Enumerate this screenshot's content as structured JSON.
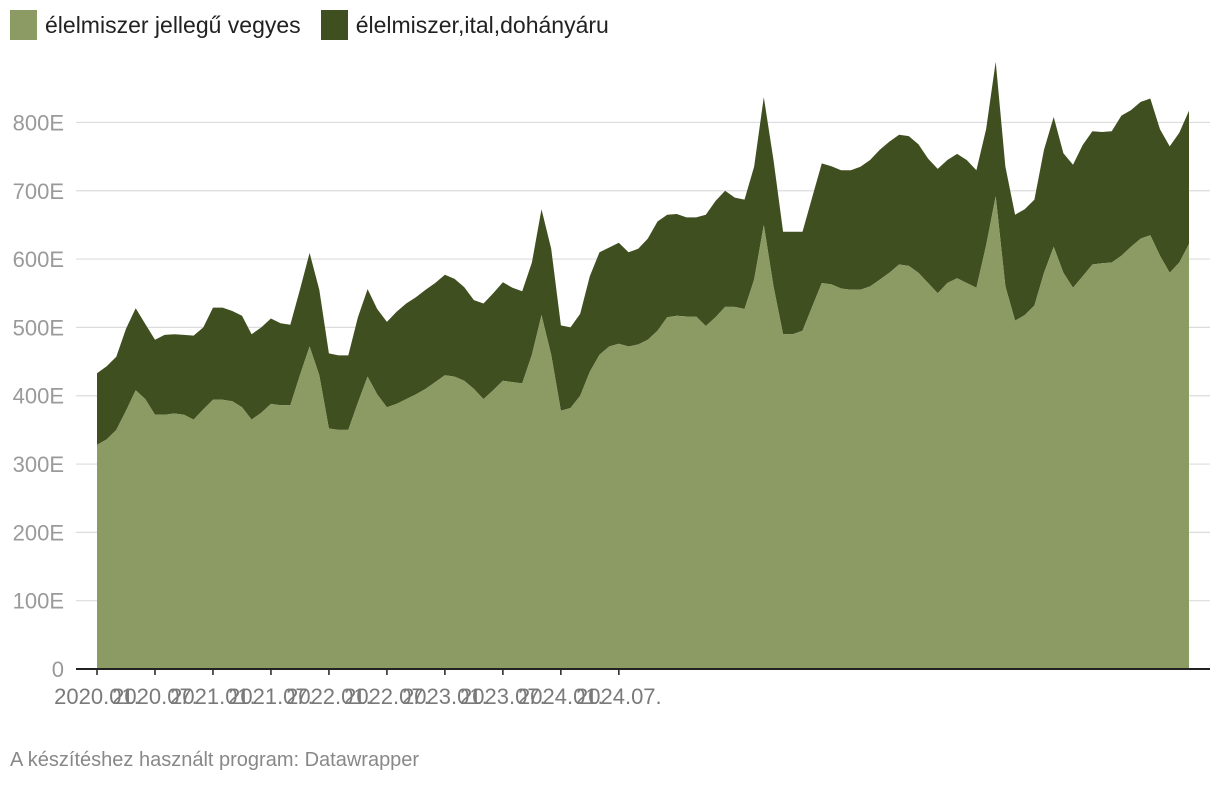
{
  "chart_data": {
    "type": "area",
    "stacked": true,
    "series": [
      {
        "name": "élelmiszer jellegű vegyes",
        "color": "#8c9a64",
        "values": [
          328,
          336,
          350,
          378,
          408,
          395,
          372,
          372,
          374,
          372,
          365,
          380,
          394,
          394,
          392,
          383,
          365,
          375,
          388,
          386,
          386,
          430,
          472,
          430,
          352,
          350,
          350,
          390,
          428,
          402,
          383,
          388,
          395,
          402,
          410,
          420,
          430,
          428,
          422,
          410,
          395,
          408,
          422,
          420,
          418,
          460,
          518,
          460,
          378,
          382,
          400,
          435,
          460,
          472,
          476,
          472,
          475,
          482,
          495,
          515,
          517,
          516,
          516,
          502,
          515,
          530,
          530,
          527,
          570,
          650,
          560,
          490,
          490,
          495,
          530,
          565,
          563,
          557,
          555,
          555,
          560,
          570,
          580,
          592,
          590,
          580,
          565,
          550,
          565,
          572,
          565,
          558,
          620,
          692,
          560,
          510,
          518,
          532,
          580,
          618,
          580,
          558,
          575,
          592,
          594,
          595,
          605,
          618,
          630,
          635,
          605,
          580,
          595,
          622
        ]
      },
      {
        "name": "élelmiszer,ital,dohányáru",
        "color": "#404f20",
        "values": [
          105,
          107,
          107,
          120,
          120,
          110,
          110,
          117,
          116,
          117,
          123,
          120,
          135,
          135,
          132,
          134,
          125,
          125,
          125,
          120,
          118,
          125,
          137,
          125,
          110,
          109,
          109,
          125,
          128,
          125,
          125,
          135,
          140,
          142,
          145,
          145,
          147,
          143,
          137,
          130,
          140,
          142,
          144,
          138,
          135,
          135,
          155,
          155,
          125,
          118,
          120,
          140,
          150,
          145,
          148,
          138,
          140,
          148,
          160,
          150,
          149,
          145,
          145,
          163,
          170,
          170,
          160,
          160,
          165,
          187,
          185,
          150,
          150,
          145,
          160,
          175,
          173,
          173,
          175,
          180,
          185,
          190,
          192,
          190,
          190,
          188,
          182,
          182,
          180,
          182,
          180,
          172,
          170,
          197,
          175,
          155,
          155,
          155,
          180,
          190,
          175,
          180,
          192,
          195,
          192,
          192,
          205,
          200,
          200,
          200,
          185,
          185,
          190,
          195
        ]
      }
    ],
    "x_start": "2020.01.",
    "x_end": "2024.10.",
    "xticks": [
      "2020.01.",
      "2020.07.",
      "2021.01.",
      "2021.07.",
      "2022.01.",
      "2022.07.",
      "2023.01.",
      "2023.07.",
      "2024.01.",
      "2024.07."
    ],
    "yticks": [
      "0",
      "100E",
      "200E",
      "300E",
      "400E",
      "500E",
      "600E",
      "700E",
      "800E"
    ],
    "ylim": [
      0,
      900
    ],
    "grid": true,
    "legend": "top-left"
  },
  "footer": "A készítéshez használt program: Datawrapper"
}
